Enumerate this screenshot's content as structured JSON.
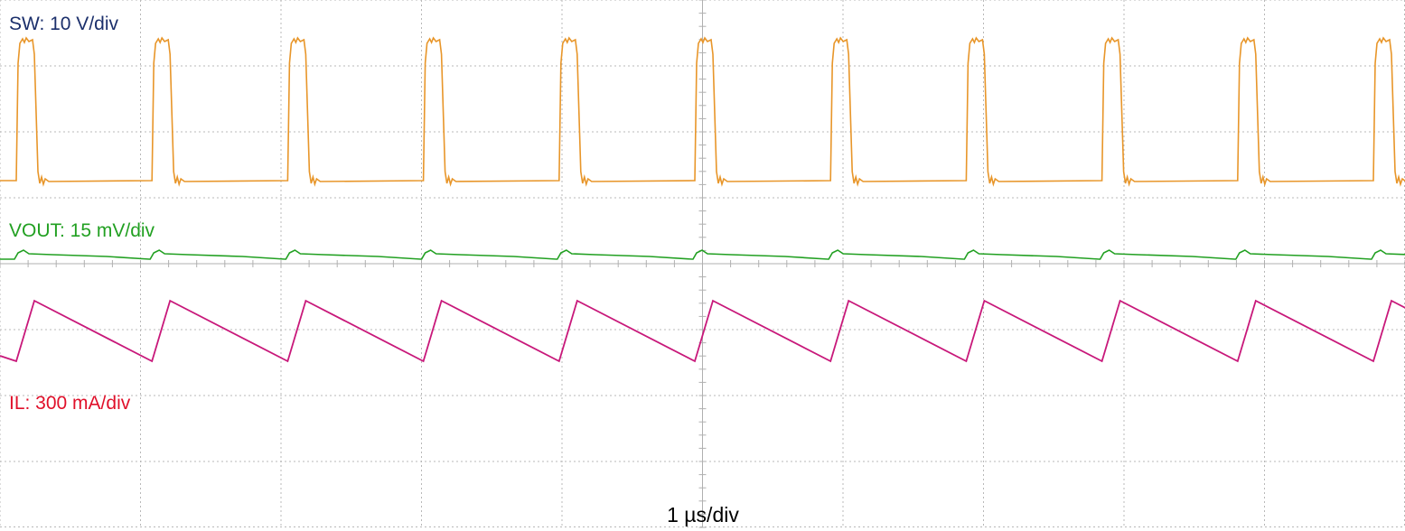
{
  "channels": [
    {
      "label": "SW: 10 V/div"
    },
    {
      "label": "VOUT: 15 mV/div"
    },
    {
      "label": "IL: 300 mA/div"
    }
  ],
  "timebase": "1 µs/div"
}
